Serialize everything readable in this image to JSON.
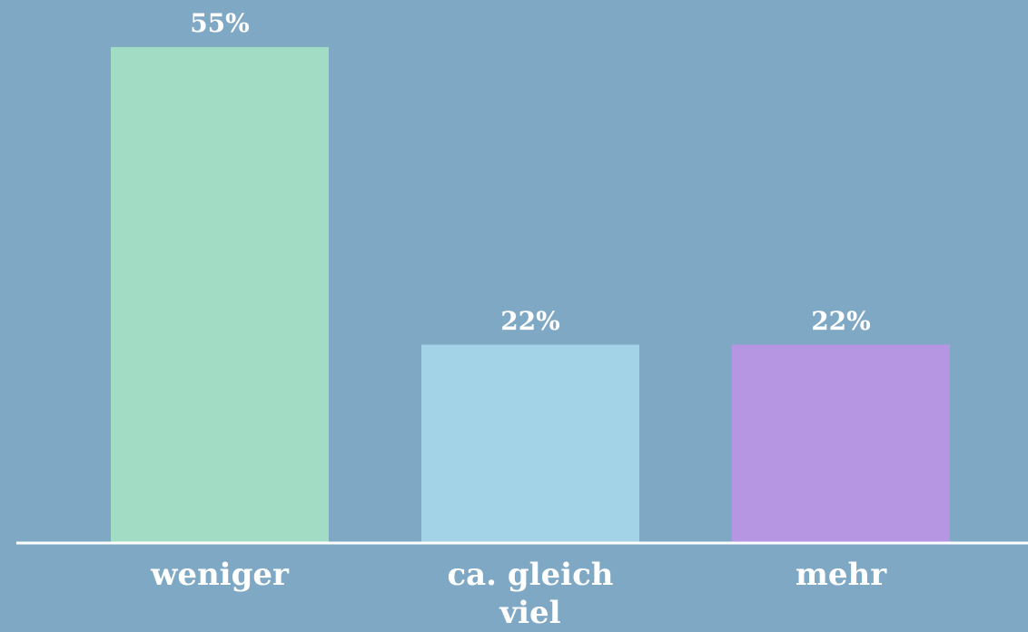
{
  "chart_data": {
    "type": "bar",
    "categories": [
      "weniger",
      "ca. gleich viel",
      "mehr"
    ],
    "values": [
      55,
      22,
      22
    ],
    "value_labels": [
      "55%",
      "22%",
      "22%"
    ],
    "colors": [
      "#a3dcc4",
      "#a2d3e6",
      "#b696e3"
    ]
  }
}
